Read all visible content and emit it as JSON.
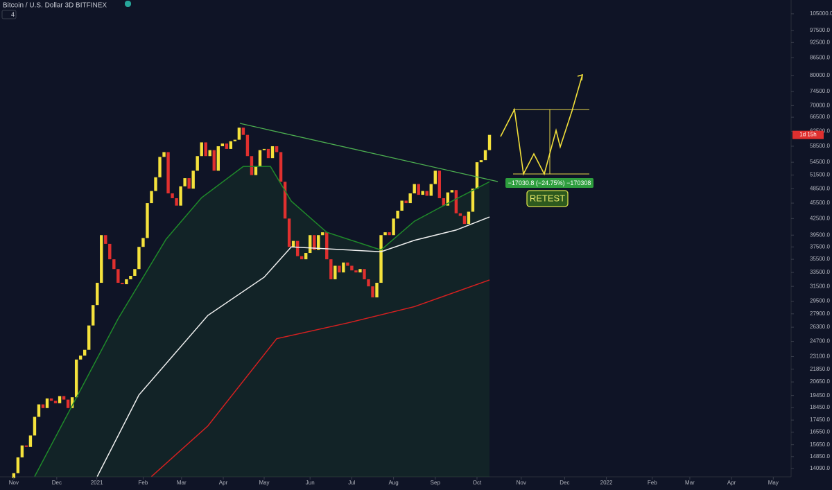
{
  "chart_data": {
    "type": "candlestick",
    "title": "Bitcoin / U.S. Dollar  3D  BITFINEX",
    "interval_menu": "4",
    "countdown": "1d 15h",
    "measure_label": "−17030.8 (−24.75%) −170308",
    "annotation": "RETEST",
    "log_scale": true,
    "up_color": "#f5e23c",
    "down_color": "#e0302f",
    "open": [
      13500,
      13800,
      14800,
      15600,
      15500,
      16300,
      17700,
      18700,
      18400,
      19200,
      19000,
      18800,
      19400,
      19100,
      18400,
      19300,
      22800,
      23200,
      23800,
      26500,
      29000,
      32000,
      39500,
      38000,
      35500,
      34000,
      32000,
      31800,
      32500,
      33000,
      34000,
      37500,
      39000,
      45500,
      48000,
      51000,
      55800,
      57000,
      47500,
      46500,
      45000,
      49000,
      50800,
      48500,
      52500,
      56000,
      59500,
      56000,
      57500,
      52500,
      58500,
      59200,
      57800,
      59800,
      60200,
      63500,
      61500,
      56000,
      51500,
      53500,
      57500,
      57800,
      55500,
      58500,
      57000,
      50000,
      42500,
      37500,
      38500,
      36000,
      35500,
      36500,
      39500,
      37000,
      39500,
      40000,
      35500,
      32500,
      34500,
      33500,
      35000,
      34500,
      33800,
      33500,
      34000,
      32500,
      31500,
      30000,
      32000,
      39500,
      40000,
      39500,
      42500,
      44000,
      46000,
      45500,
      47500,
      49500,
      47200,
      48000,
      47000,
      49500,
      52500,
      46500,
      45000,
      47700,
      48200,
      43500,
      43000,
      41500,
      43800,
      48500,
      54500,
      55000,
      57500
    ],
    "close": [
      13800,
      14800,
      15600,
      15500,
      16300,
      17700,
      18700,
      18400,
      19200,
      19000,
      18800,
      19400,
      19100,
      18400,
      19300,
      22800,
      23200,
      23800,
      26500,
      29000,
      32000,
      39500,
      38000,
      35500,
      34000,
      32000,
      31800,
      32500,
      33000,
      34000,
      37500,
      39000,
      45500,
      48000,
      51000,
      55800,
      57000,
      47500,
      46500,
      45000,
      49000,
      50800,
      48500,
      52500,
      56000,
      59500,
      56000,
      57500,
      52500,
      58500,
      59200,
      57800,
      59800,
      60200,
      63500,
      61500,
      56000,
      51500,
      53500,
      57500,
      57800,
      55500,
      58500,
      57000,
      50000,
      42500,
      37500,
      38500,
      36000,
      35500,
      36500,
      39500,
      37000,
      39500,
      40000,
      35500,
      32500,
      34500,
      33500,
      35000,
      34500,
      33800,
      33500,
      34000,
      32500,
      31500,
      30000,
      32000,
      39500,
      40000,
      39500,
      42500,
      44000,
      46000,
      45500,
      47500,
      49500,
      47200,
      48000,
      47000,
      49500,
      52500,
      46500,
      45000,
      47700,
      48200,
      43500,
      43000,
      41500,
      43800,
      48500,
      54500,
      55000,
      57500,
      61500
    ],
    "series": [
      {
        "color": "#1f8a2a",
        "x": [
          5,
          25,
          36.5,
          45,
          55,
          61.5,
          66.5,
          75,
          88,
          96,
          105,
          114
        ],
        "values": [
          13600,
          27300,
          38800,
          46600,
          53500,
          53500,
          45900,
          40000,
          37000,
          42000,
          45900,
          50000
        ]
      },
      {
        "color": "#f0f0f0",
        "x": [
          20,
          30,
          46.5,
          60,
          66.5,
          88,
          96,
          106,
          114
        ],
        "values": [
          13600,
          19500,
          27700,
          32800,
          37500,
          36700,
          38600,
          40400,
          42800
        ]
      },
      {
        "color": "#d62020",
        "x": [
          33,
          46.5,
          63,
          80,
          96,
          114
        ],
        "values": [
          13600,
          17000,
          25000,
          26800,
          28800,
          32400
        ]
      }
    ],
    "xlim": [
      -3.3,
      186.1
    ],
    "xticks": [
      {
        "value": 0,
        "label": "Nov"
      },
      {
        "value": 10.3,
        "label": "Dec"
      },
      {
        "value": 19.9,
        "label": "2021"
      },
      {
        "value": 31,
        "label": "Feb"
      },
      {
        "value": 40.2,
        "label": "Mar"
      },
      {
        "value": 50.2,
        "label": "Apr"
      },
      {
        "value": 60,
        "label": "May"
      },
      {
        "value": 71,
        "label": "Jun"
      },
      {
        "value": 81,
        "label": "Jul"
      },
      {
        "value": 91,
        "label": "Aug"
      },
      {
        "value": 101,
        "label": "Sep"
      },
      {
        "value": 111,
        "label": "Oct"
      },
      {
        "value": 121.6,
        "label": "Nov"
      },
      {
        "value": 132,
        "label": "Dec"
      },
      {
        "value": 142,
        "label": "2022"
      },
      {
        "value": 153,
        "label": "Feb"
      },
      {
        "value": 162,
        "label": "Mar"
      },
      {
        "value": 172,
        "label": "Apr"
      },
      {
        "value": 182,
        "label": "May"
      }
    ],
    "ylim": [
      13580,
      111600
    ],
    "yticks": [
      {
        "value": 105000,
        "label": "105000.0"
      },
      {
        "value": 97500,
        "label": "97500.0"
      },
      {
        "value": 92500,
        "label": "92500.0"
      },
      {
        "value": 86500,
        "label": "86500.0"
      },
      {
        "value": 80000,
        "label": "80000.0"
      },
      {
        "value": 74500,
        "label": "74500.0"
      },
      {
        "value": 70000,
        "label": "70000.0"
      },
      {
        "value": 66500,
        "label": "66500.0"
      },
      {
        "value": 62500,
        "label": "62500.0"
      },
      {
        "value": 58500,
        "label": "58500.0"
      },
      {
        "value": 54500,
        "label": "54500.0"
      },
      {
        "value": 51500,
        "label": "51500.0"
      },
      {
        "value": 48500,
        "label": "48500.0"
      },
      {
        "value": 45500,
        "label": "45500.0"
      },
      {
        "value": 42500,
        "label": "42500.0"
      },
      {
        "value": 39500,
        "label": "39500.0"
      },
      {
        "value": 37500,
        "label": "37500.0"
      },
      {
        "value": 35500,
        "label": "35500.0"
      },
      {
        "value": 33500,
        "label": "33500.0"
      },
      {
        "value": 31500,
        "label": "31500.0"
      },
      {
        "value": 29500,
        "label": "29500.0"
      },
      {
        "value": 27900,
        "label": "27900.0"
      },
      {
        "value": 26300,
        "label": "26300.0"
      },
      {
        "value": 24700,
        "label": "24700.0"
      },
      {
        "value": 23100,
        "label": "23100.0"
      },
      {
        "value": 21850,
        "label": "21850.0"
      },
      {
        "value": 20650,
        "label": "20650.0"
      },
      {
        "value": 19450,
        "label": "19450.0"
      },
      {
        "value": 18450,
        "label": "18450.0"
      },
      {
        "value": 17450,
        "label": "17450.0"
      },
      {
        "value": 16550,
        "label": "16550.0"
      },
      {
        "value": 15650,
        "label": "15650.0"
      },
      {
        "value": 14850,
        "label": "14850.0"
      },
      {
        "value": 14090,
        "label": "14090.0"
      }
    ]
  }
}
